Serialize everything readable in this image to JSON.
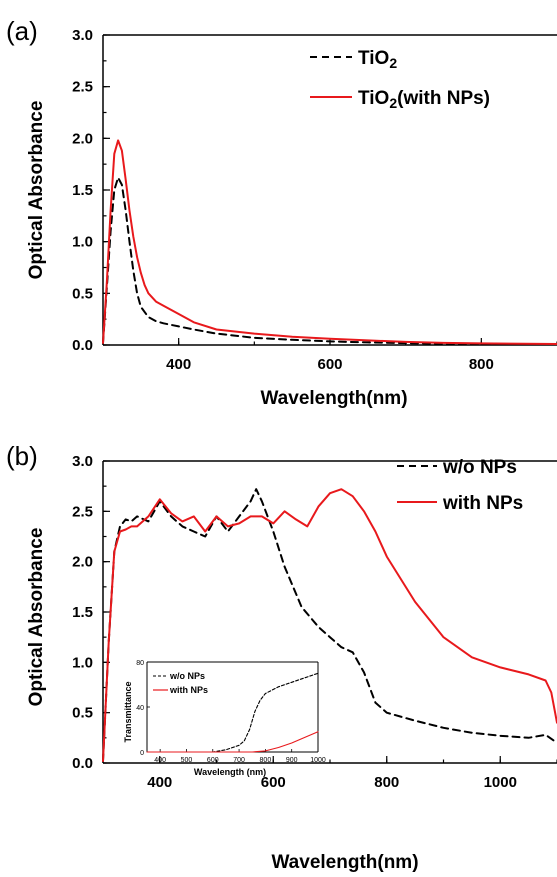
{
  "chart_data": [
    {
      "panel_label": "(a)",
      "type": "line",
      "xlabel": "Wavelength(nm)",
      "ylabel": "Optical Absorbance",
      "xlim": [
        300,
        900
      ],
      "ylim": [
        0,
        3
      ],
      "xticks": [
        400,
        600,
        800
      ],
      "yticks": [
        0,
        0.5,
        1,
        1.5,
        2,
        2.5,
        3
      ],
      "ytick_labels": [
        "0.0",
        "0.5",
        "1.0",
        "1.5",
        "2.0",
        "2.5",
        "3.0"
      ],
      "legend_position": "top-right",
      "series": [
        {
          "name": "TiO2",
          "color": "#000000",
          "style": "dashed",
          "x": [
            300,
            305,
            310,
            315,
            320,
            325,
            330,
            335,
            340,
            345,
            350,
            360,
            370,
            380,
            400,
            420,
            450,
            500,
            550,
            600,
            650,
            700,
            750,
            800,
            900
          ],
          "y": [
            0.02,
            0.55,
            1.1,
            1.5,
            1.62,
            1.55,
            1.3,
            1.0,
            0.72,
            0.5,
            0.37,
            0.27,
            0.23,
            0.21,
            0.18,
            0.15,
            0.11,
            0.07,
            0.05,
            0.035,
            0.025,
            0.018,
            0.012,
            0.01,
            0.01
          ]
        },
        {
          "name": "TiO2(with NPs)",
          "color": "#e8191c",
          "style": "solid",
          "x": [
            300,
            305,
            310,
            315,
            320,
            325,
            330,
            335,
            340,
            345,
            350,
            355,
            360,
            370,
            380,
            390,
            400,
            420,
            450,
            500,
            550,
            600,
            650,
            700,
            750,
            800,
            900
          ],
          "y": [
            0.02,
            0.6,
            1.3,
            1.85,
            1.98,
            1.88,
            1.6,
            1.3,
            1.05,
            0.85,
            0.7,
            0.58,
            0.5,
            0.42,
            0.38,
            0.34,
            0.3,
            0.22,
            0.15,
            0.11,
            0.08,
            0.06,
            0.045,
            0.03,
            0.02,
            0.015,
            0.01
          ]
        }
      ]
    },
    {
      "panel_label": "(b)",
      "type": "line",
      "xlabel": "Wavelength(nm)",
      "ylabel": "Optical Absorbance",
      "xlim": [
        300,
        1100
      ],
      "ylim": [
        0,
        3
      ],
      "xticks": [
        400,
        600,
        800,
        1000
      ],
      "yticks": [
        0,
        0.5,
        1,
        1.5,
        2,
        2.5,
        3
      ],
      "ytick_labels": [
        "0.0",
        "0.5",
        "1.0",
        "1.5",
        "2.0",
        "2.5",
        "3.0"
      ],
      "legend_position": "top-right",
      "series": [
        {
          "name": "w/o NPs",
          "color": "#000000",
          "style": "dashed",
          "x": [
            300,
            310,
            320,
            330,
            340,
            350,
            360,
            380,
            400,
            420,
            440,
            460,
            480,
            500,
            520,
            540,
            560,
            570,
            580,
            600,
            620,
            650,
            680,
            700,
            720,
            740,
            760,
            780,
            800,
            850,
            900,
            950,
            1000,
            1050,
            1080,
            1100
          ],
          "y": [
            0.02,
            1.2,
            2.1,
            2.35,
            2.42,
            2.4,
            2.45,
            2.4,
            2.6,
            2.45,
            2.35,
            2.3,
            2.25,
            2.45,
            2.3,
            2.45,
            2.6,
            2.72,
            2.6,
            2.3,
            1.95,
            1.55,
            1.35,
            1.25,
            1.15,
            1.1,
            0.9,
            0.6,
            0.5,
            0.42,
            0.35,
            0.3,
            0.27,
            0.25,
            0.28,
            0.2
          ]
        },
        {
          "name": "with NPs",
          "color": "#e8191c",
          "style": "solid",
          "x": [
            300,
            310,
            320,
            330,
            340,
            350,
            360,
            380,
            400,
            420,
            440,
            460,
            480,
            500,
            520,
            540,
            560,
            580,
            600,
            620,
            640,
            660,
            680,
            700,
            720,
            740,
            760,
            780,
            800,
            850,
            900,
            950,
            1000,
            1050,
            1080,
            1090,
            1100
          ],
          "y": [
            0.02,
            1.2,
            2.1,
            2.3,
            2.32,
            2.35,
            2.35,
            2.45,
            2.62,
            2.48,
            2.4,
            2.45,
            2.3,
            2.45,
            2.35,
            2.38,
            2.45,
            2.45,
            2.38,
            2.5,
            2.42,
            2.35,
            2.55,
            2.68,
            2.72,
            2.65,
            2.5,
            2.3,
            2.05,
            1.6,
            1.25,
            1.05,
            0.95,
            0.88,
            0.82,
            0.7,
            0.4
          ]
        }
      ]
    },
    {
      "panel_label": "",
      "type": "line",
      "is_inset": true,
      "xlabel": "Wavelength (nm)",
      "ylabel": "Transmittance",
      "xlim": [
        350,
        1000
      ],
      "ylim": [
        0,
        80
      ],
      "xticks": [
        400,
        500,
        600,
        700,
        800,
        900,
        1000
      ],
      "yticks": [
        0,
        40,
        80
      ],
      "legend_position": "top-left",
      "series": [
        {
          "name": "w/o NPs",
          "color": "#000000",
          "style": "dashed",
          "x": [
            350,
            400,
            500,
            600,
            650,
            700,
            720,
            740,
            760,
            780,
            800,
            850,
            900,
            950,
            1000
          ],
          "y": [
            0,
            0,
            0,
            0,
            2,
            6,
            10,
            20,
            36,
            46,
            52,
            58,
            62,
            66,
            70
          ]
        },
        {
          "name": "with NPs",
          "color": "#e8191c",
          "style": "solid",
          "x": [
            350,
            400,
            500,
            600,
            700,
            750,
            800,
            850,
            900,
            950,
            1000
          ],
          "y": [
            0,
            0,
            0,
            0,
            0,
            0,
            1,
            4,
            8,
            13,
            18
          ]
        }
      ]
    }
  ]
}
